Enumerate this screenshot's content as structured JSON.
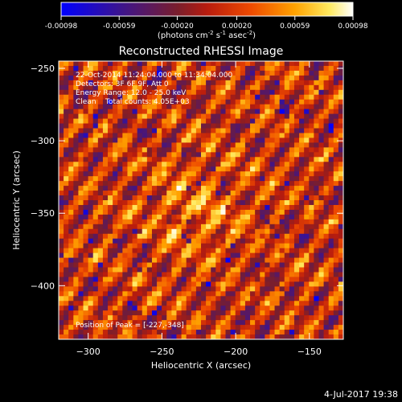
{
  "chart_data": {
    "type": "heatmap",
    "title": "Reconstructed RHESSI Image",
    "xlabel": "Heliocentric X (arcsec)",
    "ylabel": "Heliocentric Y (arcsec)",
    "xlim": [
      -320,
      -127
    ],
    "ylim": [
      -437,
      -245
    ],
    "x_ticks": [
      -300,
      -250,
      -200,
      -150
    ],
    "y_ticks": [
      -250,
      -300,
      -350,
      -400
    ],
    "colorbar": {
      "range": [
        -0.00098,
        0.00098
      ],
      "ticks": [
        -0.00098,
        -0.00059,
        -0.0002,
        0.0002,
        0.00059,
        0.00098
      ],
      "tick_labels": [
        "-0.00098",
        "-0.00059",
        "-0.00020",
        "0.00020",
        "0.00059",
        "0.00098"
      ],
      "units_prefix": "(photons cm",
      "units_sup1": "-2",
      "units_mid1": " s",
      "units_sup2": "-1",
      "units_mid2": " asec",
      "units_sup3": "-2",
      "units_suffix": ")",
      "colormap": "blue-purple-red-orange-yellow-white"
    },
    "annotations": [
      "22-Oct-2014 11:24:04.000 to 11:34:04.000",
      "Detectors: 3F 6F 9F, Att 0",
      "Energy Range: 12.0 - 25.0 keV",
      "Clean    Total counts: 4.05E+03"
    ],
    "peak_label": "Position of Peak = [-227,-348]",
    "peak": [
      -227,
      -348
    ]
  },
  "footer": {
    "timestamp": "4-Jul-2017 19:38"
  }
}
